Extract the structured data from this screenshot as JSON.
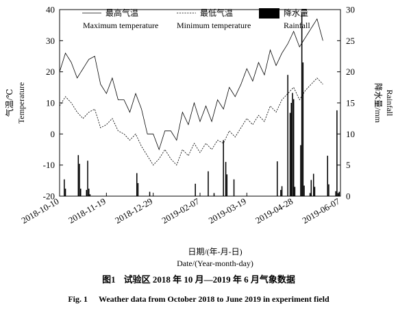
{
  "chart_data": {
    "type": "line",
    "x_start": "2018-10-10",
    "x_end": "2019-06-07",
    "x_ticks": [
      "2018-10-10",
      "2018-11-19",
      "2018-12-29",
      "2019-02-07",
      "2019-03-19",
      "2019-04-28",
      "2019-06-07"
    ],
    "xlabel": "日期/(年-月-日)",
    "xlabel_en": "Date/(Year-month-day)",
    "ylabel_left": "气温/℃",
    "ylabel_left_en": "Temperature",
    "ylim_left": [
      -20,
      40
    ],
    "yticks_left": [
      "-20",
      "-10",
      "0",
      "10",
      "20",
      "30",
      "40"
    ],
    "ylabel_right": "降水量/mm",
    "ylabel_right_en": "Rainfall",
    "ylim_right": [
      0,
      30
    ],
    "yticks_right": [
      "0",
      "5",
      "10",
      "15",
      "20",
      "25",
      "30"
    ],
    "grid": false,
    "legend_position": "top",
    "series": [
      {
        "name": "最高气温",
        "name_en": "Maximum temperature",
        "type": "line",
        "axis": "left",
        "style": "solid",
        "values": [
          20,
          21.2,
          22.4,
          23.6,
          24.8,
          26,
          25.4,
          24.8,
          24.2,
          23.6,
          23,
          22,
          21,
          20,
          19,
          18,
          18.6,
          19.2,
          19.8,
          20.4,
          21,
          21.6,
          22.2,
          22.8,
          23.4,
          24,
          24.2,
          24.4,
          24.6,
          24.8,
          25,
          23.2,
          21.4,
          19.6,
          17.8,
          16,
          15.4,
          14.8,
          14.2,
          13.6,
          13,
          14,
          15,
          16,
          17,
          18,
          16.6,
          15.2,
          13.8,
          12.4,
          11,
          11,
          11,
          11,
          11,
          11,
          10.2,
          9.4,
          8.6,
          7.8,
          7,
          8.2,
          9.4,
          10.6,
          11.8,
          13,
          12,
          11,
          10,
          9,
          8,
          6.4,
          4.8,
          3.2,
          1.6,
          0,
          0,
          0,
          0,
          0,
          0,
          -1,
          -2,
          -3,
          -4,
          -5,
          -3.8,
          -2.6,
          -1.4,
          -0.2,
          1,
          1,
          1,
          1,
          1,
          1,
          0.4,
          -0.2,
          -0.8,
          -1.4,
          -2,
          -0.2,
          1.6,
          3.4,
          5.2,
          7,
          6.2,
          5.4,
          4.6,
          3.8,
          3,
          4.4,
          5.8,
          7.2,
          8.6,
          10,
          8.8,
          7.6,
          6.4,
          5.2,
          4,
          5,
          6,
          7,
          8,
          9,
          8,
          7,
          6,
          5,
          4,
          5.4,
          6.8,
          8.2,
          9.6,
          11,
          10.4,
          9.8,
          9.2,
          8.6,
          8,
          9.4,
          10.8,
          12.2,
          13.6,
          15,
          14.4,
          13.8,
          13.2,
          12.6,
          12,
          12.8,
          13.6,
          14.4,
          15.2,
          16,
          17,
          18,
          19,
          20,
          21,
          20.2,
          19.4,
          18.6,
          17.8,
          17,
          18.2,
          19.4,
          20.6,
          21.8,
          23,
          22.2,
          21.4,
          20.6,
          19.8,
          19,
          20.6,
          22.2,
          23.8,
          25.4,
          27,
          26,
          25,
          24,
          23,
          22,
          22.8,
          23.6,
          24.4,
          25.2,
          26,
          26.6,
          27.2,
          27.8,
          28.4,
          29,
          29.8,
          30.6,
          31.4,
          32.2,
          33,
          32,
          31,
          30,
          29,
          28,
          28.6,
          29.2,
          29.8,
          30.4,
          31,
          31.6,
          32.2,
          32.8,
          33.4,
          34,
          34.6,
          35.2,
          35.8,
          36.4,
          37,
          35.6,
          34.2,
          32.8,
          31.4,
          30
        ]
      },
      {
        "name": "最低气温",
        "name_en": "Minimum temperature",
        "type": "line",
        "axis": "left",
        "style": "dashed",
        "values": [
          9,
          9.6,
          10.2,
          10.8,
          11.4,
          12,
          11.6,
          11.2,
          10.8,
          10.4,
          10,
          9.4,
          8.8,
          8.2,
          7.6,
          7,
          6.6,
          6.2,
          5.8,
          5.4,
          5,
          5.4,
          5.8,
          6.2,
          6.6,
          7,
          7.2,
          7.4,
          7.6,
          7.8,
          8,
          6.8,
          5.6,
          4.4,
          3.2,
          2,
          2.2,
          2.4,
          2.6,
          2.8,
          3,
          3.4,
          3.8,
          4.2,
          4.6,
          5,
          4.2,
          3.4,
          2.6,
          1.8,
          1,
          0.8,
          0.6,
          0.4,
          0.2,
          0,
          -0.4,
          -0.8,
          -1.2,
          -1.6,
          -2,
          -1.6,
          -1.2,
          -0.8,
          -0.4,
          0,
          -0.8,
          -1.6,
          -2.4,
          -3.2,
          -4,
          -4.6,
          -5.2,
          -5.8,
          -6.4,
          -7,
          -7.6,
          -8.2,
          -8.8,
          -9.4,
          -10,
          -9.6,
          -9.2,
          -8.8,
          -8.4,
          -8,
          -7.4,
          -6.8,
          -6.2,
          -5.6,
          -5,
          -5.6,
          -6.2,
          -6.8,
          -7.4,
          -8,
          -8.4,
          -8.8,
          -9.2,
          -9.6,
          -10,
          -9,
          -8,
          -7,
          -6,
          -5,
          -5.4,
          -5.8,
          -6.2,
          -6.6,
          -7,
          -6.2,
          -5.4,
          -4.6,
          -3.8,
          -3,
          -3.6,
          -4.2,
          -4.8,
          -5.4,
          -6,
          -5.4,
          -4.8,
          -4.2,
          -3.6,
          -3,
          -3.4,
          -3.8,
          -4.2,
          -4.6,
          -5,
          -4.4,
          -3.8,
          -3.2,
          -2.6,
          -2,
          -2.2,
          -2.4,
          -2.6,
          -2.8,
          -3,
          -2.2,
          -1.4,
          -0.6,
          0.2,
          1,
          0.6,
          0.2,
          -0.2,
          -0.6,
          -1,
          -0.4,
          0.2,
          0.8,
          1.4,
          2,
          2.6,
          3.2,
          3.8,
          4.4,
          5,
          4.6,
          4.2,
          3.8,
          3.4,
          3,
          3.6,
          4.2,
          4.8,
          5.4,
          6,
          5.6,
          5.2,
          4.8,
          4.4,
          4,
          5,
          6,
          7,
          8,
          9,
          8.6,
          8.2,
          7.8,
          7.4,
          7,
          7.8,
          8.6,
          9.4,
          10.2,
          11,
          11.4,
          11.8,
          12.2,
          12.6,
          13,
          13.4,
          13.8,
          14.2,
          14.6,
          15,
          14.2,
          13.4,
          12.6,
          11.8,
          11,
          11.6,
          12.2,
          12.8,
          13.4,
          14,
          14.4,
          14.8,
          15.2,
          15.6,
          16,
          16.4,
          16.8,
          17.2,
          17.6,
          18,
          17.6,
          17.2,
          16.8,
          16.4,
          16
        ]
      },
      {
        "name": "降水量",
        "name_en": "Rainfall",
        "type": "bar",
        "axis": "right",
        "bars": [
          {
            "date": "2018-10-14",
            "value": 2.7
          },
          {
            "date": "2018-10-15",
            "value": 1.2
          },
          {
            "date": "2018-10-26",
            "value": 6.6
          },
          {
            "date": "2018-10-27",
            "value": 5.2
          },
          {
            "date": "2018-10-28",
            "value": 1.2
          },
          {
            "date": "2018-11-02",
            "value": 1.0
          },
          {
            "date": "2018-11-03",
            "value": 5.7
          },
          {
            "date": "2018-11-04",
            "value": 1.2
          },
          {
            "date": "2018-11-05",
            "value": 0.3
          },
          {
            "date": "2018-12-15",
            "value": 3.7
          },
          {
            "date": "2018-12-16",
            "value": 2.1
          },
          {
            "date": "2018-12-26",
            "value": 0.7
          },
          {
            "date": "2019-02-03",
            "value": 2.0
          },
          {
            "date": "2019-02-14",
            "value": 4.0
          },
          {
            "date": "2019-02-19",
            "value": 0.5
          },
          {
            "date": "2019-02-27",
            "value": 9.0
          },
          {
            "date": "2019-03-01",
            "value": 5.5
          },
          {
            "date": "2019-03-02",
            "value": 3.5
          },
          {
            "date": "2019-03-08",
            "value": 2.7
          },
          {
            "date": "2019-04-14",
            "value": 5.6
          },
          {
            "date": "2019-04-17",
            "value": 1.0
          },
          {
            "date": "2019-04-18",
            "value": 1.6
          },
          {
            "date": "2019-04-23",
            "value": 19.5
          },
          {
            "date": "2019-04-25",
            "value": 13.4
          },
          {
            "date": "2019-04-26",
            "value": 15.0
          },
          {
            "date": "2019-04-27",
            "value": 16.6
          },
          {
            "date": "2019-04-28",
            "value": 15.6
          },
          {
            "date": "2019-04-29",
            "value": 1.5
          },
          {
            "date": "2019-05-04",
            "value": 8.2
          },
          {
            "date": "2019-05-05",
            "value": 29.4
          },
          {
            "date": "2019-05-06",
            "value": 21.5
          },
          {
            "date": "2019-05-07",
            "value": 1.7
          },
          {
            "date": "2019-05-12",
            "value": 0.5
          },
          {
            "date": "2019-05-13",
            "value": 2.6
          },
          {
            "date": "2019-05-15",
            "value": 3.6
          },
          {
            "date": "2019-05-16",
            "value": 1.5
          },
          {
            "date": "2019-05-27",
            "value": 6.5
          },
          {
            "date": "2019-05-28",
            "value": 1.9
          },
          {
            "date": "2019-06-03",
            "value": 0.8
          },
          {
            "date": "2019-06-04",
            "value": 13.8
          },
          {
            "date": "2019-06-05",
            "value": 0.5
          },
          {
            "date": "2019-06-06",
            "value": 0.7
          }
        ]
      }
    ]
  },
  "caption": {
    "zh_num": "图1",
    "zh_text": "试验区 2018 年 10 月—2019 年 6 月气象数据",
    "en_num": "Fig. 1",
    "en_text": "Weather data from October 2018 to June 2019 in experiment field"
  },
  "colors": {
    "line": "#000000",
    "bar": "#000000",
    "background": "#ffffff"
  }
}
